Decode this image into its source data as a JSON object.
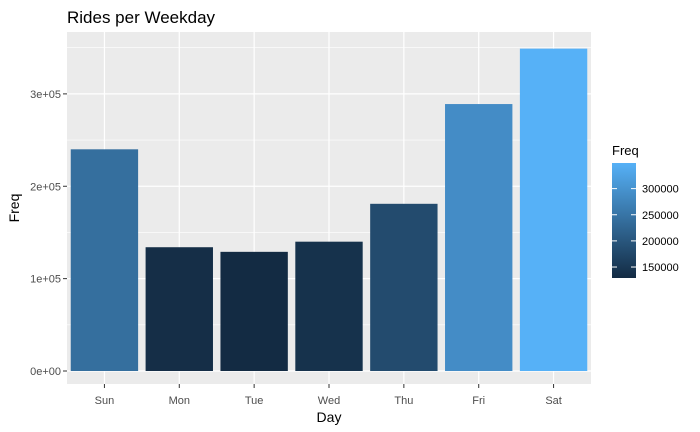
{
  "chart_data": {
    "type": "bar",
    "title": "Rides per Weekday",
    "xlabel": "Day",
    "ylabel": "Freq",
    "categories": [
      "Sun",
      "Mon",
      "Tue",
      "Wed",
      "Thu",
      "Fri",
      "Sat"
    ],
    "values": [
      240000,
      134000,
      129000,
      140000,
      181000,
      289000,
      349000
    ],
    "ylim": [
      0,
      367000
    ],
    "y_ticks": [
      0,
      100000,
      200000,
      300000
    ],
    "y_tick_labels": [
      "0e+00",
      "1e+05",
      "2e+05",
      "3e+05"
    ],
    "grid": true,
    "legend": {
      "title": "Freq",
      "placement": "right",
      "ticks": [
        150000,
        200000,
        250000,
        300000
      ],
      "tick_labels": [
        "150000",
        "200000",
        "250000",
        "300000"
      ],
      "range": [
        129000,
        349000
      ],
      "color_low": "#132B43",
      "color_high": "#56B1F7"
    },
    "panel_background": "#EBEBEB",
    "grid_color": "#FFFFFF"
  }
}
